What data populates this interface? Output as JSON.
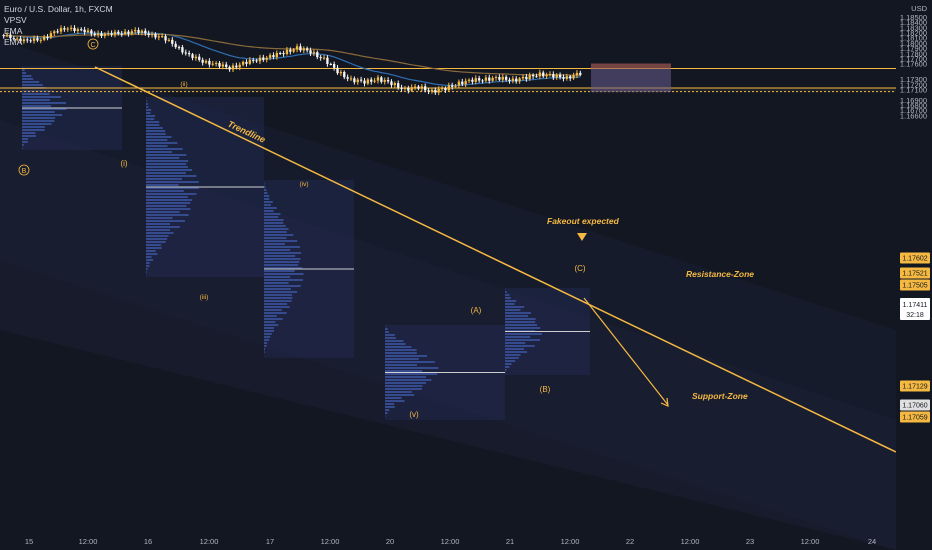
{
  "legend": {
    "symbol": "Euro / U.S. Dollar, 1h, FXCM",
    "indicators": [
      "VPSV",
      "EMA",
      "EMA"
    ]
  },
  "axis": {
    "currency": "USD",
    "y_ticks": [
      "1.18500",
      "1.18400",
      "1.18300",
      "1.18200",
      "1.18100",
      "1.18000",
      "1.17900",
      "1.17800",
      "1.17700",
      "1.17600",
      "1.17505",
      "1.17300",
      "1.17200",
      "1.17100",
      "1.16900",
      "1.16800",
      "1.16700",
      "1.16600"
    ],
    "x_ticks": [
      "15",
      "12:00",
      "16",
      "12:00",
      "17",
      "12:00",
      "20",
      "12:00",
      "21",
      "12:00",
      "22",
      "12:00",
      "23",
      "12:00",
      "24"
    ]
  },
  "price_tags": [
    {
      "label": "1.17602",
      "color": "#f5b942",
      "text_color": "#131722"
    },
    {
      "label": "1.17521",
      "color": "#f5b942",
      "text_color": "#131722"
    },
    {
      "label": "1.17505",
      "color": "#f5b942",
      "text_color": "#131722"
    },
    {
      "label": "1.17411",
      "sublabel": "32:18",
      "color": "#ffffff",
      "text_color": "#131722"
    },
    {
      "label": "1.17129",
      "color": "#f5b942",
      "text_color": "#131722"
    },
    {
      "label": "1.17060",
      "color": "#e0e0e0",
      "text_color": "#131722"
    },
    {
      "label": "1.17059",
      "color": "#f5b942",
      "text_color": "#131722"
    }
  ],
  "annotations": {
    "trendline": "Trendline",
    "resistance": "Resistance-Zone",
    "support": "Support-Zone",
    "fakeout": "Fakeout expected",
    "waves": {
      "C_circle": "C",
      "B_circle": "B",
      "i": "(i)",
      "ii": "(ii)",
      "iii": "(iii)",
      "iv": "(iv)",
      "v": "(v)",
      "A": "(A)",
      "B": "(B)",
      "C": "(C)"
    }
  },
  "colors": {
    "background": "#131722",
    "accent": "#f5b942",
    "bull": "#f5b942",
    "bear": "#f5f5f5",
    "ema_fast": "#2f6fb3",
    "ema_slow": "#8a6a3a",
    "profile": "#3d5aa8",
    "box_short_red": "#a0584e",
    "box_short_purple": "#6a5c8c"
  },
  "chart_data": {
    "type": "candlestick",
    "title": "Euro / U.S. Dollar, 1h, FXCM",
    "ylabel": "USD",
    "ylim": [
      1.1658,
      1.1855
    ],
    "x": [
      "15",
      "12:00",
      "16",
      "12:00",
      "17",
      "12:00",
      "20",
      "12:00",
      "21",
      "12:00",
      "22",
      "12:00",
      "23",
      "12:00",
      "24"
    ],
    "series": [
      {
        "name": "EURUSD",
        "close_path": [
          1.1815,
          1.181,
          1.1803,
          1.1808,
          1.182,
          1.183,
          1.1823,
          1.1818,
          1.1816,
          1.182,
          1.1822,
          1.1818,
          1.181,
          1.1795,
          1.1775,
          1.1765,
          1.1758,
          1.1752,
          1.176,
          1.1768,
          1.1773,
          1.1782,
          1.179,
          1.1783,
          1.1768,
          1.1745,
          1.1728,
          1.1725,
          1.173,
          1.1722,
          1.171,
          1.1715,
          1.1706,
          1.1712,
          1.1722,
          1.1728,
          1.173,
          1.1732,
          1.1728,
          1.1733,
          1.174,
          1.1736,
          1.1733,
          1.1741
        ]
      }
    ],
    "levels": {
      "resistance_zone": [
        1.17505,
        1.17521
      ],
      "support_zone": [
        1.17059,
        1.17129
      ],
      "short_entry": 1.17505,
      "short_stop": 1.17602,
      "short_target": 1.1705
    }
  }
}
